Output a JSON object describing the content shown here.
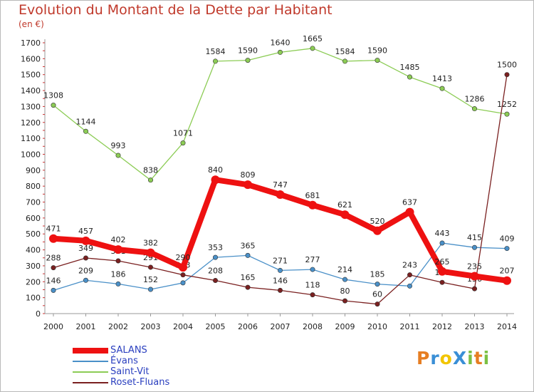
{
  "title": "Evolution du Montant de la Dette par Habitant",
  "unit_label": "(en €)",
  "logo": {
    "text": "ProXiti",
    "letters": [
      {
        "ch": "P",
        "color": "#e67e22"
      },
      {
        "ch": "r",
        "color": "#3a8fd6"
      },
      {
        "ch": "o",
        "color": "#f2c500"
      },
      {
        "ch": "X",
        "color": "#3a8fd6"
      },
      {
        "ch": "i",
        "color": "#7bc043"
      },
      {
        "ch": "t",
        "color": "#e67e22"
      },
      {
        "ch": "i",
        "color": "#7bc043"
      }
    ]
  },
  "chart_data": {
    "type": "line",
    "title": "Evolution du Montant de la Dette par Habitant",
    "ylabel": "(en €)",
    "xlabel": "",
    "ylim": [
      0,
      1700
    ],
    "ytick_step": 100,
    "grid": false,
    "legend_position": "bottom-left",
    "x": [
      "2000",
      "2001",
      "2002",
      "2003",
      "2004",
      "2005",
      "2006",
      "2007",
      "2008",
      "2009",
      "2010",
      "2011",
      "2012",
      "2013",
      "2014"
    ],
    "series": [
      {
        "name": "SALANS",
        "color": "#ee1111",
        "emphasis": true,
        "values": [
          471,
          457,
          402,
          382,
          290,
          840,
          809,
          747,
          681,
          621,
          520,
          637,
          265,
          235,
          207
        ],
        "labels": [
          "471",
          "457",
          "402",
          "382",
          "290",
          "840",
          "809",
          "747",
          "681",
          "621",
          "520",
          "637",
          "265",
          "235",
          "207"
        ]
      },
      {
        "name": "Évans",
        "color": "#4a90c8",
        "emphasis": false,
        "values": [
          146,
          209,
          186,
          152,
          193,
          353,
          365,
          271,
          277,
          214,
          185,
          173,
          443,
          415,
          409
        ],
        "labels": [
          "146",
          "209",
          "186",
          "152",
          "",
          "353",
          "365",
          "271",
          "277",
          "214",
          "185",
          "",
          "443",
          "415",
          "409"
        ]
      },
      {
        "name": "Saint-Vit",
        "color": "#8ccc55",
        "emphasis": false,
        "values": [
          1308,
          1144,
          993,
          838,
          1071,
          1584,
          1590,
          1640,
          1665,
          1584,
          1590,
          1485,
          1413,
          1286,
          1252
        ],
        "labels": [
          "1308",
          "1144",
          "993",
          "838",
          "1071",
          "1584",
          "1590",
          "1640",
          "1665",
          "1584",
          "1590",
          "1485",
          "1413",
          "1286",
          "1252"
        ]
      },
      {
        "name": "Roset-Fluans",
        "color": "#7a2020",
        "emphasis": false,
        "values": [
          288,
          349,
          331,
          291,
          243,
          208,
          165,
          146,
          118,
          80,
          60,
          243,
          196,
          156,
          1500
        ],
        "labels": [
          "288",
          "349",
          "331",
          "291",
          "243",
          "208",
          "165",
          "146",
          "118",
          "80",
          "60",
          "243",
          "196",
          "156",
          "1500"
        ]
      }
    ]
  }
}
